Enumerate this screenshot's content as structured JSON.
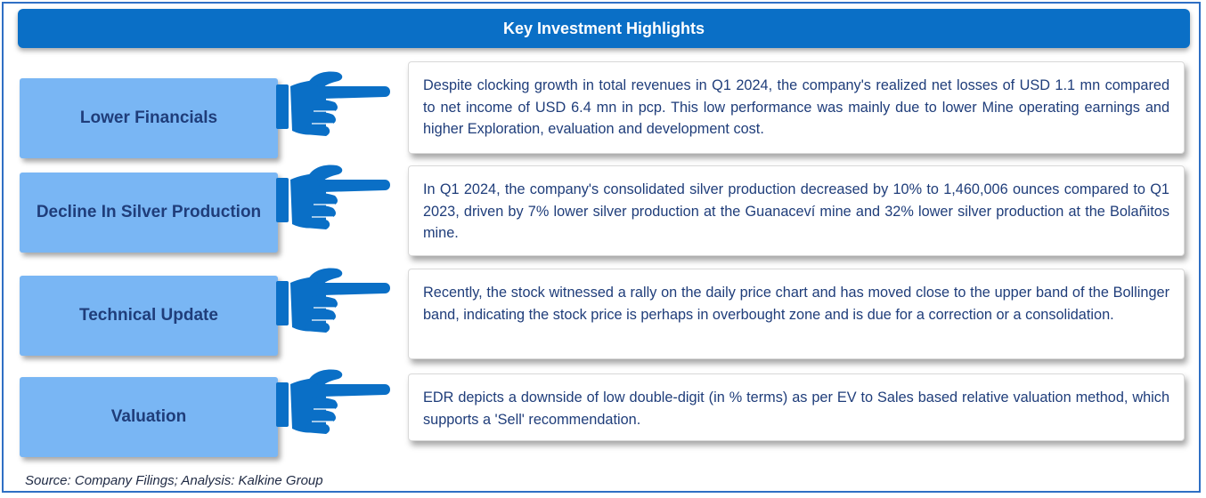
{
  "header": {
    "title": "Key Investment Highlights"
  },
  "highlights": [
    {
      "label": "Lower Financials",
      "text": "Despite clocking growth in total revenues in Q1 2024, the company's realized net losses of USD 1.1 mn compared to net income of USD 6.4 mn in pcp. This low performance was mainly due to lower Mine operating earnings and higher Exploration, evaluation and development cost."
    },
    {
      "label": "Decline In Silver Production",
      "text": "In Q1 2024, the company's consolidated silver production decreased by 10% to 1,460,006 ounces compared to Q1 2023, driven by 7% lower silver production at the Guanaceví mine and 32% lower silver production at the Bolañitos mine."
    },
    {
      "label": "Technical Update",
      "text": "Recently, the stock witnessed a rally on the daily price chart and has moved close to the upper band of the Bollinger band, indicating the stock price is perhaps in overbought zone and is due for a correction or a consolidation."
    },
    {
      "label": "Valuation",
      "text": "EDR depicts a downside of low double-digit (in % terms) as per EV to Sales based relative valuation method, which supports a 'Sell' recommendation."
    }
  ],
  "footer": {
    "source": "Source: Company Filings; Analysis: Kalkine Group"
  },
  "colors": {
    "header_bg": "#0a6fc6",
    "label_bg": "#79b6f4",
    "label_text": "#1f3d7a",
    "hand_icon": "#0a6fc6",
    "border": "#2f6fc4"
  }
}
